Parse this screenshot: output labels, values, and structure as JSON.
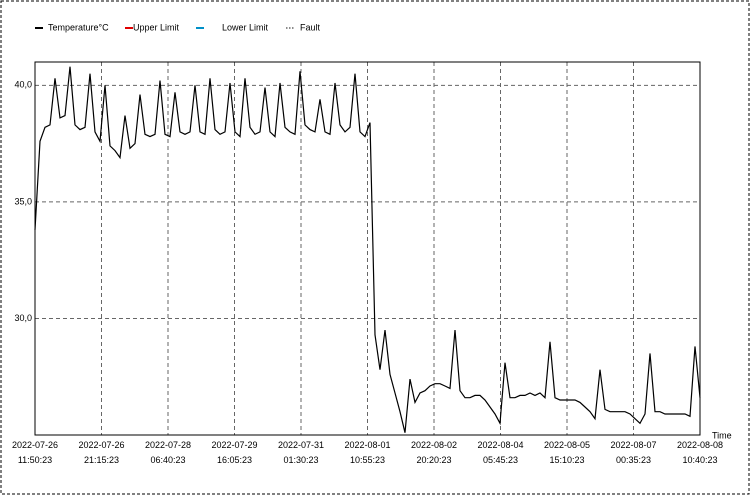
{
  "chart_data": {
    "type": "line",
    "legend": [
      {
        "name": "Temperature°C",
        "color": "#000000",
        "style": "solid"
      },
      {
        "name": "Upper Limit",
        "color": "#e00000",
        "style": "solid"
      },
      {
        "name": "Lower Limit",
        "color": "#0090c8",
        "style": "solid"
      },
      {
        "name": "Fault",
        "color": "#666666",
        "style": "dotted"
      }
    ],
    "x_label": "Time",
    "xticks": [
      "2022-07-26\n11:50:23",
      "2022-07-26\n21:15:23",
      "2022-07-28\n06:40:23",
      "2022-07-29\n16:05:23",
      "2022-07-31\n01:30:23",
      "2022-08-01\n10:55:23",
      "2022-08-02\n20:20:23",
      "2022-08-04\n05:45:23",
      "2022-08-05\n15:10:23",
      "2022-08-07\n00:35:23",
      "2022-08-08\n10:40:23"
    ],
    "series": [
      {
        "name": "Temperature°C",
        "color": "#000000",
        "values": [
          33.8,
          37.6,
          38.2,
          38.3,
          40.3,
          38.6,
          38.7,
          40.8,
          38.3,
          38.1,
          38.2,
          40.5,
          38.0,
          37.6,
          40.0,
          37.4,
          37.2,
          36.9,
          38.7,
          37.3,
          37.5,
          39.6,
          37.9,
          37.8,
          37.9,
          40.2,
          37.9,
          37.8,
          39.7,
          38.0,
          37.9,
          38.0,
          40.0,
          38.0,
          37.9,
          40.3,
          38.1,
          37.9,
          38.0,
          40.1,
          38.0,
          37.8,
          40.3,
          38.2,
          37.9,
          38.0,
          39.9,
          38.0,
          37.8,
          40.1,
          38.2,
          38.0,
          37.9,
          40.6,
          38.3,
          38.1,
          38.0,
          39.4,
          38.0,
          37.9,
          40.1,
          38.3,
          38.0,
          38.2,
          40.5,
          38.0,
          37.8,
          38.4,
          29.3,
          27.8,
          29.5,
          27.6,
          26.8,
          26.0,
          25.1,
          27.4,
          26.4,
          26.8,
          26.9,
          27.1,
          27.2,
          27.2,
          27.1,
          27.0,
          29.5,
          26.9,
          26.6,
          26.6,
          26.7,
          26.7,
          26.5,
          26.2,
          25.9,
          25.5,
          28.1,
          26.6,
          26.6,
          26.7,
          26.7,
          26.8,
          26.7,
          26.8,
          26.6,
          29.0,
          26.6,
          26.5,
          26.5,
          26.5,
          26.5,
          26.4,
          26.2,
          26.0,
          25.7,
          27.8,
          26.1,
          26.0,
          26.0,
          26.0,
          26.0,
          25.9,
          25.7,
          25.5,
          25.9,
          28.5,
          26.0,
          26.0,
          25.9,
          25.9,
          25.9,
          25.9,
          25.9,
          25.8,
          28.8,
          26.6
        ]
      }
    ],
    "ylim": [
      25,
      41
    ],
    "yticks": [
      {
        "value": 30,
        "label": "30,0"
      },
      {
        "value": 35,
        "label": "35,0"
      },
      {
        "value": 40,
        "label": "40,0"
      }
    ],
    "grid": true
  }
}
